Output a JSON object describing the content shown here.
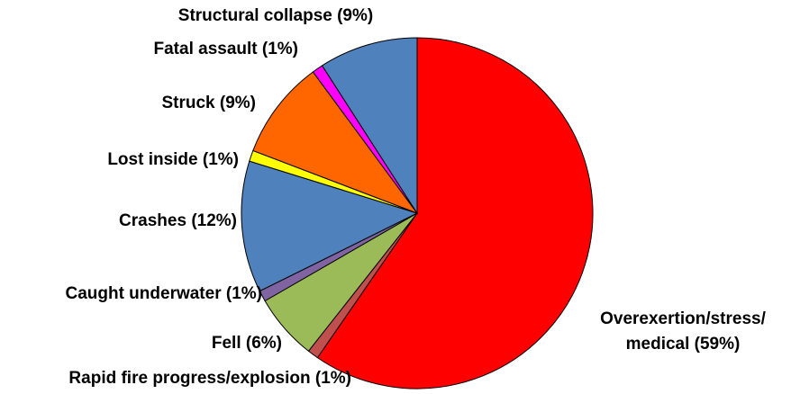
{
  "chart_data": {
    "type": "pie",
    "categories": [
      "Overexertion/stress/ medical (59%)",
      "Rapid fire progress/explosion (1%)",
      "Fell (6%)",
      "Caught underwater (1%)",
      "Crashes (12%)",
      "Lost inside (1%)",
      "Struck (9%)",
      "Fatal assault (1%)",
      "Structural collapse (9%)"
    ],
    "values": [
      59,
      1,
      6,
      1,
      12,
      1,
      9,
      1,
      9
    ],
    "colors": [
      "#ff0000",
      "#c0504d",
      "#9bbb59",
      "#8064a2",
      "#4f81bd",
      "#ffff00",
      "#ff6600",
      "#ff00ff",
      "#4f81bd"
    ]
  }
}
